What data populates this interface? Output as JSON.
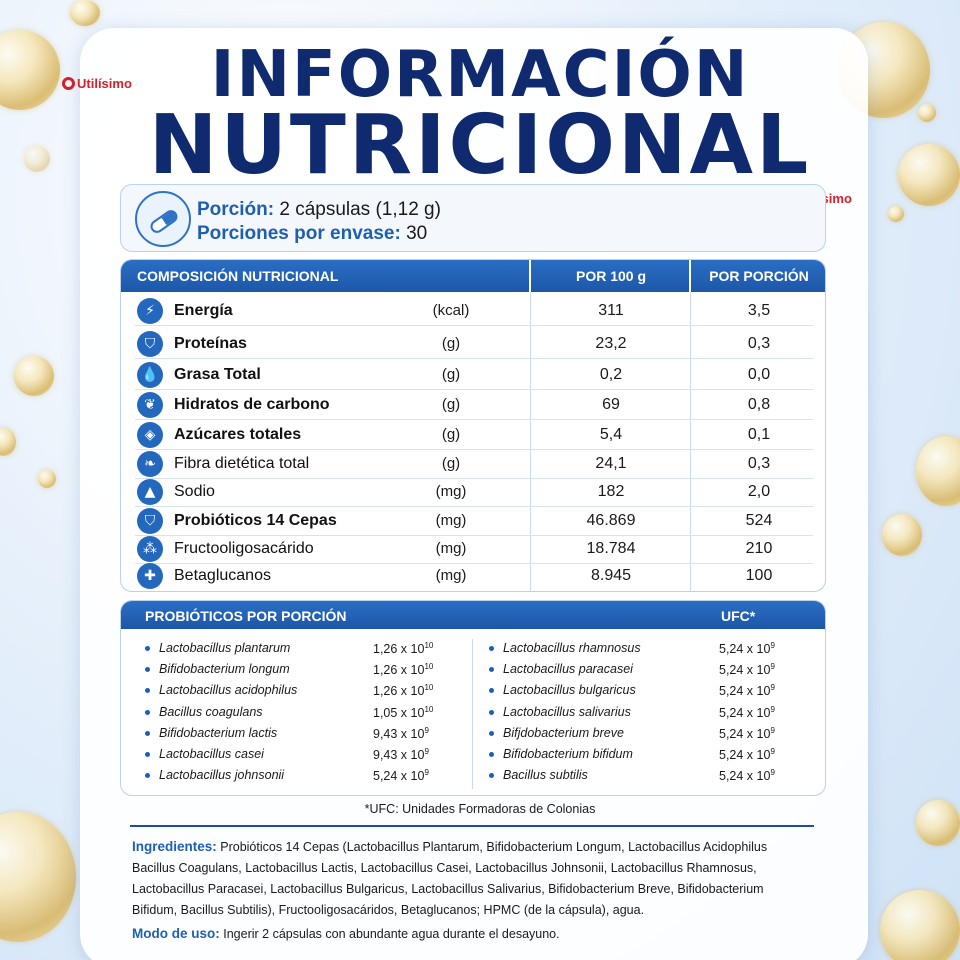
{
  "title_line1": "INFORMACIÓN",
  "title_line2": "NUTRICIONAL",
  "brand": "Utilísimo",
  "portion": {
    "label1": "Porción:",
    "value1": "2 cápsulas (1,12 g)",
    "label2": "Porciones por envase:",
    "value2": "30"
  },
  "table": {
    "headers": [
      "COMPOSICIÓN NUTRICIONAL",
      "POR 100 g",
      "POR PORCIÓN"
    ],
    "rows": [
      {
        "name": "Energía",
        "unit": "(kcal)",
        "per100": "311",
        "perPortion": "3,5",
        "icon": "lightning-icon",
        "glyph": "⚡"
      },
      {
        "name": "Proteínas",
        "unit": "(g)",
        "per100": "23,2",
        "perPortion": "0,3",
        "icon": "shield-icon",
        "glyph": "⛉"
      },
      {
        "name": "Grasa Total",
        "unit": "(g)",
        "per100": "0,2",
        "perPortion": "0,0",
        "icon": "drop-icon",
        "glyph": "💧"
      },
      {
        "name": "Hidratos de carbono",
        "unit": "(g)",
        "per100": "69",
        "perPortion": "0,8",
        "icon": "wheat-icon",
        "glyph": "❦"
      },
      {
        "name": "Azúcares totales",
        "unit": "(g)",
        "per100": "5,4",
        "perPortion": "0,1",
        "icon": "cube-icon",
        "glyph": "◈"
      },
      {
        "name": "Fibra dietética total",
        "unit": "(g)",
        "per100": "24,1",
        "perPortion": "0,3",
        "icon": "leaf-icon",
        "glyph": "❧"
      },
      {
        "name": "Sodio",
        "unit": "(mg)",
        "per100": "182",
        "perPortion": "2,0",
        "icon": "salt-shaker-icon",
        "glyph": "▲"
      },
      {
        "name": "Probióticos 14 Cepas",
        "unit": "(mg)",
        "per100": "46.869",
        "perPortion": "524",
        "icon": "shield-icon",
        "glyph": "⛉"
      },
      {
        "name": "Fructooligosacárido",
        "unit": "(mg)",
        "per100": "18.784",
        "perPortion": "210",
        "icon": "molecule-icon",
        "glyph": "⁂"
      },
      {
        "name": "Betaglucanos",
        "unit": "(mg)",
        "per100": "8.945",
        "perPortion": "100",
        "icon": "plus-icon",
        "glyph": "✚"
      }
    ]
  },
  "probiotics": {
    "header": "PROBIÓTICOS POR PORCIÓN",
    "ufc_header": "UFC*",
    "left": [
      {
        "name": "Lactobacillus plantarum",
        "base": "1,26 x 10",
        "exp": "10"
      },
      {
        "name": "Bifidobacterium longum",
        "base": "1,26 x 10",
        "exp": "10"
      },
      {
        "name": "Lactobacillus acidophilus",
        "base": "1,26 x 10",
        "exp": "10"
      },
      {
        "name": "Bacillus coagulans",
        "base": "1,05 x 10",
        "exp": "10"
      },
      {
        "name": "Bifidobacterium lactis",
        "base": "9,43 x 10",
        "exp": "9"
      },
      {
        "name": "Lactobacillus casei",
        "base": "9,43 x 10",
        "exp": "9"
      },
      {
        "name": "Lactobacillus johnsonii",
        "base": "5,24 x 10",
        "exp": "9"
      }
    ],
    "right": [
      {
        "name": "Lactobacillus rhamnosus",
        "base": "5,24 x 10",
        "exp": "9"
      },
      {
        "name": "Lactobacillus paracasei",
        "base": "5,24 x 10",
        "exp": "9"
      },
      {
        "name": "Lactobacillus bulgaricus",
        "base": "5,24 x 10",
        "exp": "9"
      },
      {
        "name": "Lactobacillus salivarius",
        "base": "5,24 x 10",
        "exp": "9"
      },
      {
        "name": "Bifjdobacterium breve",
        "base": "5,24 x 10",
        "exp": "9"
      },
      {
        "name": "Bifidobacterium bifidum",
        "base": "5,24 x 10",
        "exp": "9"
      },
      {
        "name": "Bacillus subtilis",
        "base": "5,24 x 10",
        "exp": "9"
      }
    ]
  },
  "ufc_note": "*UFC:  Unidades Formadoras de Colonias",
  "ingredients_label": "Ingredientes:",
  "ingredients_text": "Probióticos 14 Cepas (Lactobacillus Plantarum, Bifidobacterium Longum, Lactobacillus Acidophilus Bacillus Coagulans, Lactobacillus Lactis, Lactobacillus Casei, Lactobacillus Johnsonii, Lactobacillus Rhamnosus, Lactobacillus Paracasei, Lactobacillus Bulgaricus, Lactobacillus Salivarius, Bifidobacterium Breve, Bifidobacterium Bifidum, Bacillus Subtilis), Fructooligosacáridos, Betaglucanos; HPMC (de la cápsula), agua.",
  "usage_label": "Modo de uso:",
  "usage_text": "Ingerir 2 cápsulas con abundante agua durante el desayuno."
}
